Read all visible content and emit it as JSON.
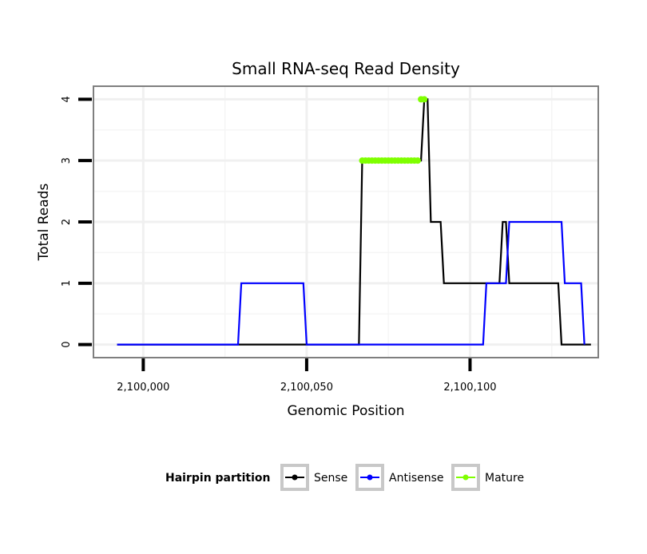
{
  "chart_data": {
    "type": "line",
    "title": "Small RNA-seq Read Density",
    "xlabel": "Genomic Position",
    "ylabel": "Total Reads",
    "xlim": [
      2099985,
      2100139
    ],
    "ylim": [
      -0.2,
      4.2
    ],
    "x_ticks": [
      {
        "value": 2100000,
        "label": "2,100,000"
      },
      {
        "value": 2100050,
        "label": "2,100,050"
      },
      {
        "value": 2100100,
        "label": "2,100,100"
      }
    ],
    "y_ticks": [
      {
        "value": 0,
        "label": "0"
      },
      {
        "value": 1,
        "label": "1"
      },
      {
        "value": 2,
        "label": "2"
      },
      {
        "value": 3,
        "label": "3"
      },
      {
        "value": 4,
        "label": "4"
      }
    ],
    "legend": {
      "title": "Hairpin partition",
      "position": "bottom",
      "entries": [
        {
          "name": "Sense",
          "color": "#000000"
        },
        {
          "name": "Antisense",
          "color": "#0000ff"
        },
        {
          "name": "Mature",
          "color": "#7fff00"
        }
      ]
    },
    "series": [
      {
        "name": "Sense",
        "color": "#000000",
        "points": [
          [
            2099992,
            0
          ],
          [
            2100066,
            0
          ],
          [
            2100067,
            3
          ],
          [
            2100084,
            3
          ],
          [
            2100085,
            3
          ],
          [
            2100086,
            4
          ],
          [
            2100087,
            4
          ],
          [
            2100088,
            2
          ],
          [
            2100091,
            2
          ],
          [
            2100092,
            1
          ],
          [
            2100109,
            1
          ],
          [
            2100110,
            2
          ],
          [
            2100111,
            2
          ],
          [
            2100112,
            1
          ],
          [
            2100127,
            1
          ],
          [
            2100128,
            0
          ],
          [
            2100137,
            0
          ]
        ]
      },
      {
        "name": "Antisense",
        "color": "#0000ff",
        "points": [
          [
            2099992,
            0
          ],
          [
            2100029,
            0
          ],
          [
            2100030,
            1
          ],
          [
            2100049,
            1
          ],
          [
            2100050,
            0
          ],
          [
            2100104,
            0
          ],
          [
            2100105,
            1
          ],
          [
            2100111,
            1
          ],
          [
            2100112,
            2
          ],
          [
            2100128,
            2
          ],
          [
            2100129,
            1
          ],
          [
            2100134,
            1
          ],
          [
            2100135,
            0
          ]
        ]
      },
      {
        "name": "Mature",
        "color": "#7fff00",
        "points": [
          [
            2100067,
            3
          ],
          [
            2100068,
            3
          ],
          [
            2100069,
            3
          ],
          [
            2100070,
            3
          ],
          [
            2100071,
            3
          ],
          [
            2100072,
            3
          ],
          [
            2100073,
            3
          ],
          [
            2100074,
            3
          ],
          [
            2100075,
            3
          ],
          [
            2100076,
            3
          ],
          [
            2100077,
            3
          ],
          [
            2100078,
            3
          ],
          [
            2100079,
            3
          ],
          [
            2100080,
            3
          ],
          [
            2100081,
            3
          ],
          [
            2100082,
            3
          ],
          [
            2100083,
            3
          ],
          [
            2100084,
            3
          ],
          [
            2100085,
            4
          ],
          [
            2100086,
            4
          ]
        ]
      }
    ]
  }
}
